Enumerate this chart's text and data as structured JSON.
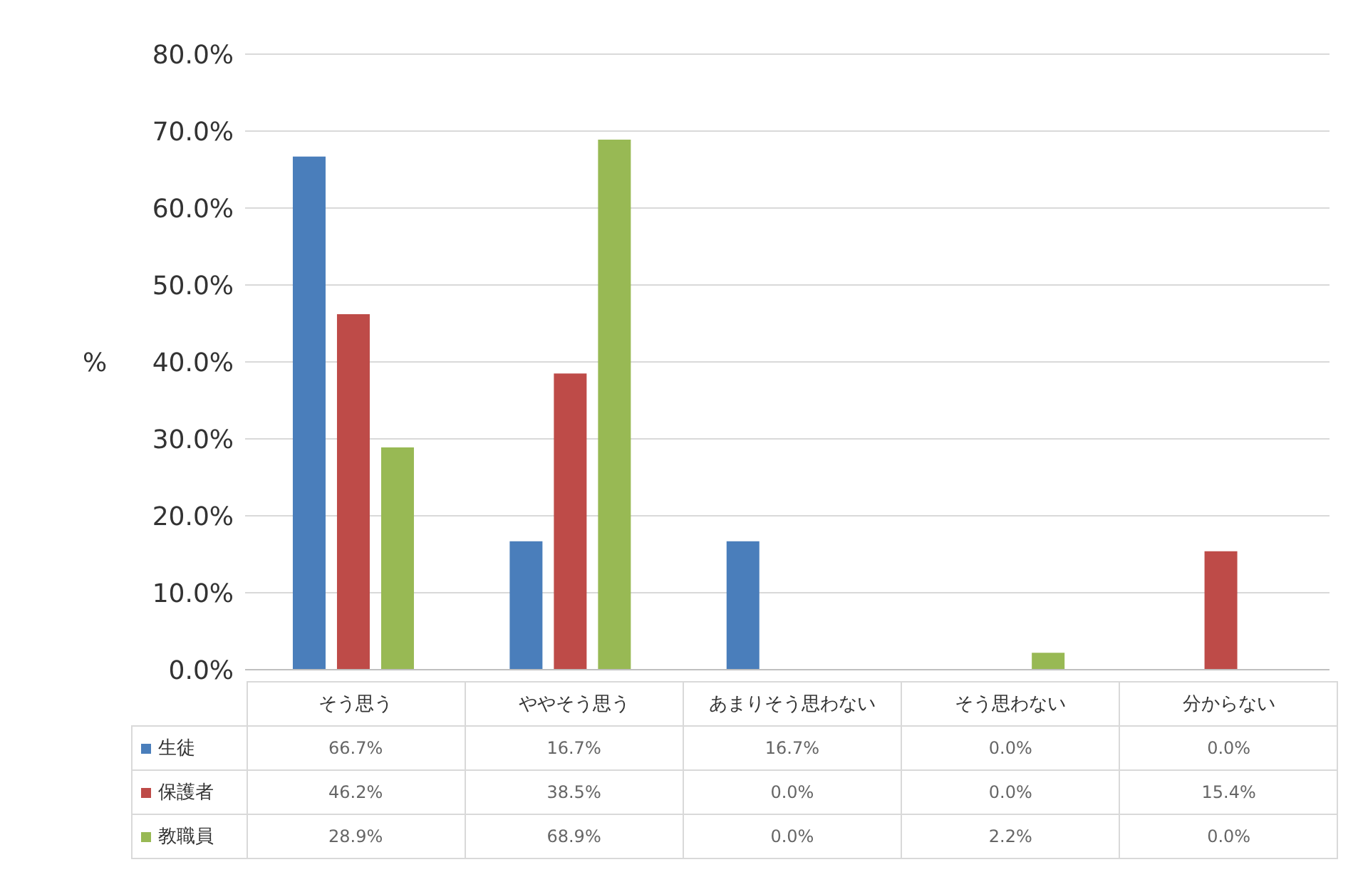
{
  "chart_data": {
    "type": "bar",
    "ylabel": "%",
    "categories": [
      "そう思う",
      "ややそう思う",
      "あまりそう思わない",
      "そう思わない",
      "分からない"
    ],
    "series": [
      {
        "name": "生徒",
        "color": "#4a7ebb",
        "values": [
          66.7,
          16.7,
          16.7,
          0.0,
          0.0
        ],
        "value_labels": [
          "66.7%",
          "16.7%",
          "16.7%",
          "0.0%",
          "0.0%"
        ]
      },
      {
        "name": "保護者",
        "color": "#be4b48",
        "values": [
          46.2,
          38.5,
          0.0,
          0.0,
          15.4
        ],
        "value_labels": [
          "46.2%",
          "38.5%",
          "0.0%",
          "0.0%",
          "15.4%"
        ]
      },
      {
        "name": "教職員",
        "color": "#98b954",
        "values": [
          28.9,
          68.9,
          0.0,
          2.2,
          0.0
        ],
        "value_labels": [
          "28.9%",
          "68.9%",
          "0.0%",
          "2.2%",
          "0.0%"
        ]
      }
    ],
    "ylim": [
      0,
      80
    ],
    "yticks": [
      {
        "value": 0,
        "label": "0.0%"
      },
      {
        "value": 10,
        "label": "10.0%"
      },
      {
        "value": 20,
        "label": "20.0%"
      },
      {
        "value": 30,
        "label": "30.0%"
      },
      {
        "value": 40,
        "label": "40.0%"
      },
      {
        "value": 50,
        "label": "50.0%"
      },
      {
        "value": 60,
        "label": "60.0%"
      },
      {
        "value": 70,
        "label": "70.0%"
      },
      {
        "value": 80,
        "label": "80.0%"
      }
    ],
    "grid": "y",
    "legend": "bottom"
  }
}
